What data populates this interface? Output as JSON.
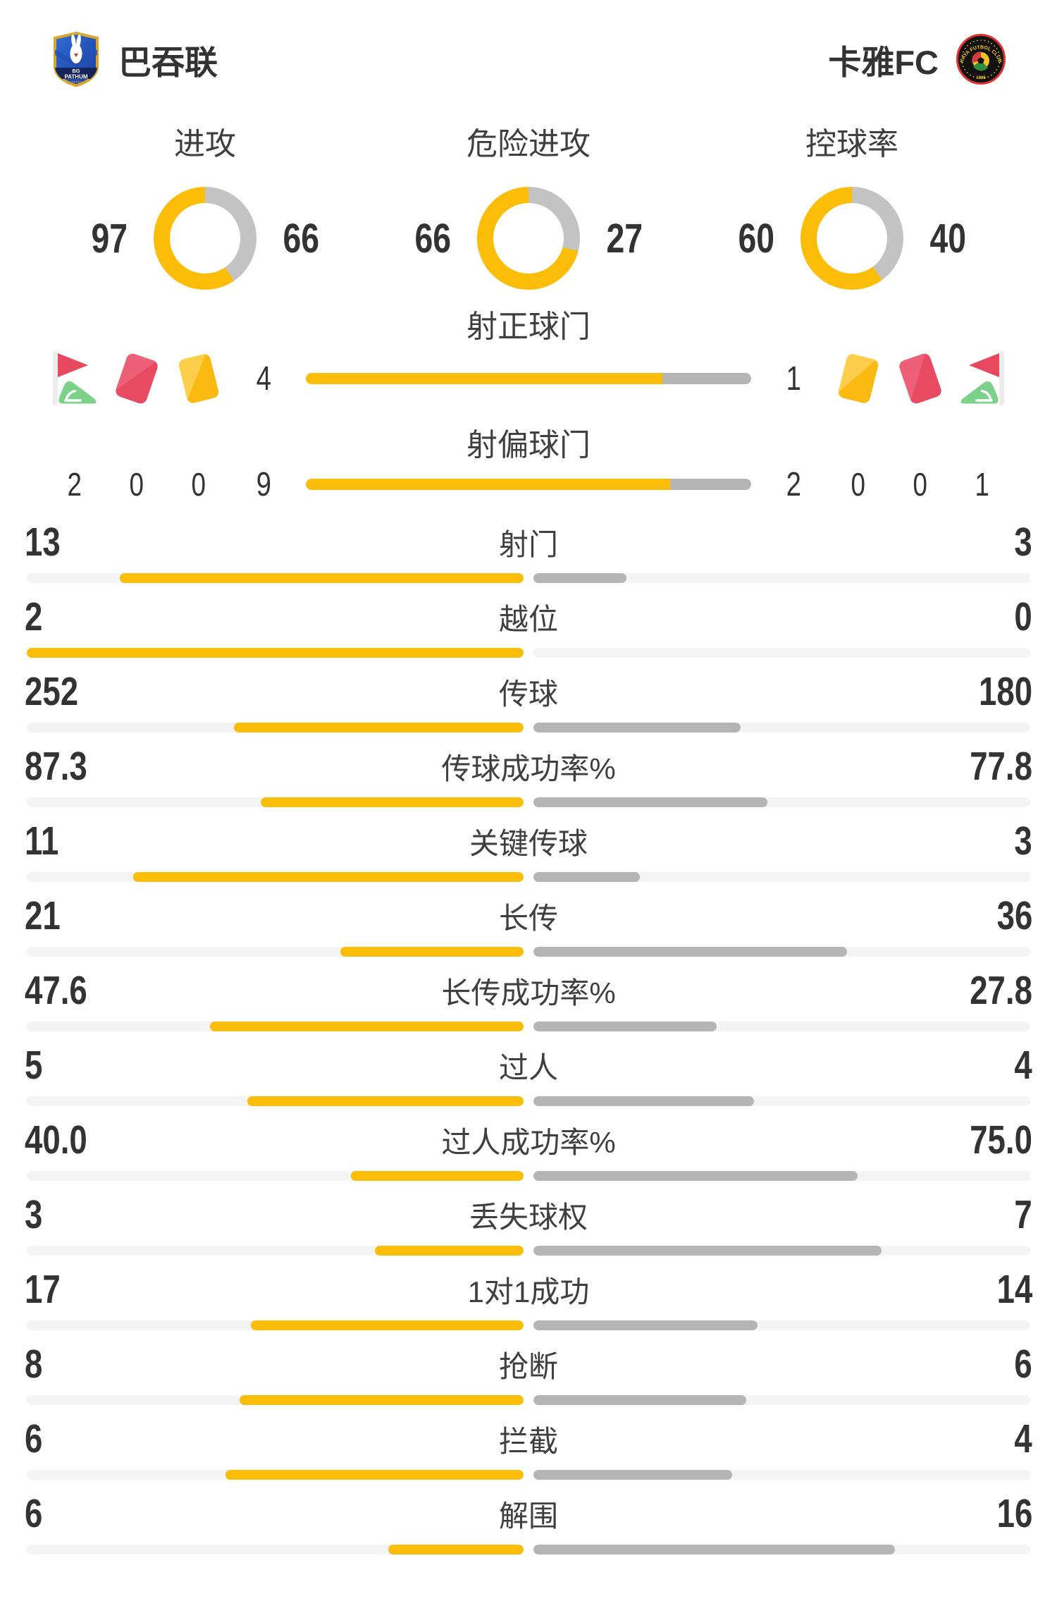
{
  "header": {
    "home_team": {
      "name": "巴吞联",
      "logo": "bg-pathum-shield",
      "logo_lines": [
        "BG",
        "PATHUM",
        "UNITED"
      ]
    },
    "away_team": {
      "name": "卡雅FC",
      "logo": "kaya-fc-crest",
      "logo_lines": [
        "KAYA FUTBOL CLUB",
        "1996"
      ]
    }
  },
  "colors": {
    "accent_yellow": "#fbbd08",
    "bar_gray": "#b5b5b5",
    "donut_gray": "#c3c3c3",
    "track_gray": "#f4f4f4",
    "text_dark": "#333333",
    "label_gray": "#3f3f3f",
    "red_card": "#e84a62",
    "yellow_card": "#fbba12",
    "flag_red": "#e8495f",
    "flag_green": "#7cd18b"
  },
  "donuts": [
    {
      "title": "进攻",
      "home": 97,
      "away": 66
    },
    {
      "title": "危险进攻",
      "home": 66,
      "away": 27
    },
    {
      "title": "控球率",
      "home": 60,
      "away": 40
    }
  ],
  "shots": {
    "rows": [
      {
        "label": "射正球门",
        "home": 4,
        "away": 1
      },
      {
        "label": "射偏球门",
        "home": 9,
        "away": 2
      }
    ]
  },
  "discipline": {
    "home": [
      {
        "icon": "corner-flag-icon",
        "count": 2
      },
      {
        "icon": "red-card-icon",
        "count": 0
      },
      {
        "icon": "yellow-card-icon",
        "count": 0
      }
    ],
    "away": [
      {
        "icon": "yellow-card-icon",
        "count": 0
      },
      {
        "icon": "red-card-icon",
        "count": 0
      },
      {
        "icon": "corner-flag-icon",
        "count": 1
      }
    ]
  },
  "stats": [
    {
      "label": "射门",
      "home": "13",
      "away": "3"
    },
    {
      "label": "越位",
      "home": "2",
      "away": "0"
    },
    {
      "label": "传球",
      "home": "252",
      "away": "180"
    },
    {
      "label": "传球成功率%",
      "home": "87.3",
      "away": "77.8"
    },
    {
      "label": "关键传球",
      "home": "11",
      "away": "3"
    },
    {
      "label": "长传",
      "home": "21",
      "away": "36"
    },
    {
      "label": "长传成功率%",
      "home": "47.6",
      "away": "27.8"
    },
    {
      "label": "过人",
      "home": "5",
      "away": "4"
    },
    {
      "label": "过人成功率%",
      "home": "40.0",
      "away": "75.0"
    },
    {
      "label": "丢失球权",
      "home": "3",
      "away": "7"
    },
    {
      "label": "1对1成功",
      "home": "17",
      "away": "14"
    },
    {
      "label": "抢断",
      "home": "8",
      "away": "6"
    },
    {
      "label": "拦截",
      "home": "6",
      "away": "4"
    },
    {
      "label": "解围",
      "home": "6",
      "away": "16"
    }
  ],
  "chart_data": [
    {
      "type": "pie",
      "title": "进攻",
      "categories": [
        "巴吞联",
        "卡雅FC"
      ],
      "values": [
        97,
        66
      ],
      "colors": [
        "#fbbd08",
        "#c3c3c3"
      ],
      "hole": true
    },
    {
      "type": "pie",
      "title": "危险进攻",
      "categories": [
        "巴吞联",
        "卡雅FC"
      ],
      "values": [
        66,
        27
      ],
      "colors": [
        "#fbbd08",
        "#c3c3c3"
      ],
      "hole": true
    },
    {
      "type": "pie",
      "title": "控球率",
      "categories": [
        "巴吞联",
        "卡雅FC"
      ],
      "values": [
        60,
        40
      ],
      "colors": [
        "#fbbd08",
        "#c3c3c3"
      ],
      "hole": true
    },
    {
      "type": "bar",
      "title": "比赛数据对比",
      "categories": [
        "射正球门",
        "射偏球门",
        "角球",
        "红牌",
        "黄牌",
        "射门",
        "越位",
        "传球",
        "传球成功率%",
        "关键传球",
        "长传",
        "长传成功率%",
        "过人",
        "过人成功率%",
        "丢失球权",
        "1对1成功",
        "抢断",
        "拦截",
        "解围"
      ],
      "series": [
        {
          "name": "巴吞联",
          "values": [
            4,
            9,
            2,
            0,
            0,
            13,
            2,
            252,
            87.3,
            11,
            21,
            47.6,
            5,
            40.0,
            3,
            17,
            8,
            6,
            6
          ]
        },
        {
          "name": "卡雅FC",
          "values": [
            1,
            2,
            1,
            0,
            0,
            3,
            0,
            180,
            77.8,
            3,
            36,
            27.8,
            4,
            75.0,
            7,
            14,
            6,
            4,
            16
          ]
        }
      ],
      "legend_position": "none",
      "grid": false
    }
  ]
}
